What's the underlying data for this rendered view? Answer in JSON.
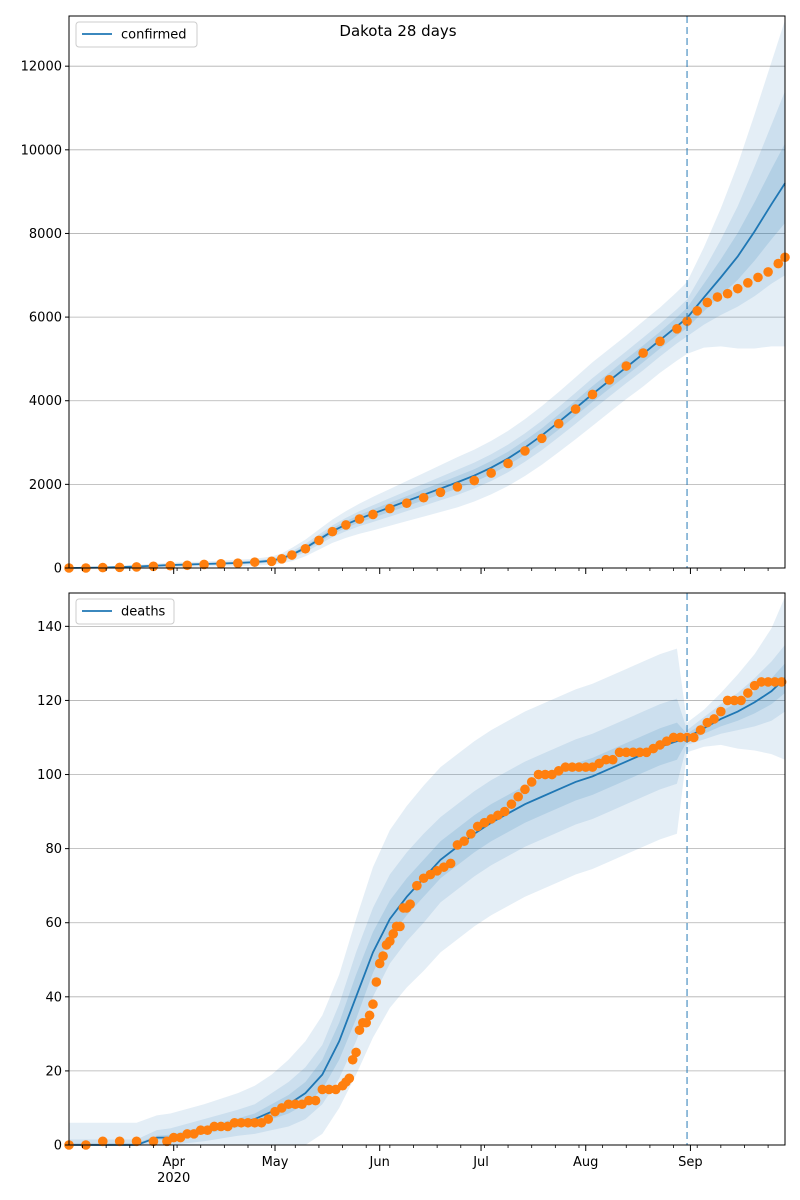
{
  "title": "Dakota 28 days",
  "colors": {
    "model": "#1f77b4",
    "observed": "#ff7f0e",
    "band": "#1f77b4",
    "grid": "#b0b0b0"
  },
  "x_axis": {
    "ticks": [
      {
        "label": "Apr",
        "day": 31,
        "sub": "2020"
      },
      {
        "label": "May",
        "day": 61
      },
      {
        "label": "Jun",
        "day": 92
      },
      {
        "label": "Jul",
        "day": 122
      },
      {
        "label": "Aug",
        "day": 153
      },
      {
        "label": "Sep",
        "day": 184
      }
    ]
  },
  "chart_data": [
    {
      "type": "line",
      "panel": "confirmed",
      "title": "Dakota 28 days",
      "legend": [
        {
          "label": "confirmed",
          "placement": "upper left"
        }
      ],
      "x_range_days_since_2020_03_01": [
        0,
        212
      ],
      "forecast_start_day": 183,
      "ylim": [
        0,
        13200
      ],
      "yticks": [
        "0",
        "2000",
        "4000",
        "6000",
        "8000",
        "10000",
        "12000"
      ],
      "grid": "horizontal",
      "model_series": {
        "name": "confirmed",
        "days": [
          0,
          10,
          20,
          30,
          40,
          50,
          55,
          60,
          63,
          66,
          70,
          74,
          78,
          82,
          86,
          90,
          95,
          100,
          105,
          110,
          115,
          120,
          125,
          130,
          135,
          140,
          145,
          150,
          155,
          160,
          165,
          170,
          175,
          180,
          183,
          188,
          193,
          198,
          203,
          208,
          212
        ],
        "values": [
          0,
          10,
          35,
          70,
          95,
          120,
          140,
          175,
          230,
          320,
          480,
          680,
          880,
          1040,
          1180,
          1300,
          1450,
          1600,
          1750,
          1900,
          2050,
          2210,
          2400,
          2620,
          2880,
          3170,
          3490,
          3820,
          4160,
          4480,
          4800,
          5120,
          5450,
          5780,
          5980,
          6470,
          6950,
          7450,
          8050,
          8700,
          9200
        ],
        "band_widths": {
          "inner": [
            0,
            5,
            10,
            15,
            15,
            20,
            20,
            25,
            30,
            40,
            50,
            60,
            70,
            80,
            90,
            100,
            110,
            120,
            130,
            140,
            150,
            150,
            160,
            160,
            170,
            170,
            180,
            180,
            190,
            190,
            200,
            200,
            200,
            220,
            240,
            330,
            430,
            560,
            700,
            840,
            950
          ],
          "middle": [
            0,
            10,
            20,
            30,
            30,
            40,
            40,
            50,
            60,
            80,
            100,
            120,
            140,
            160,
            180,
            200,
            220,
            240,
            260,
            280,
            300,
            310,
            320,
            330,
            340,
            350,
            360,
            370,
            380,
            380,
            380,
            390,
            390,
            410,
            440,
            650,
            900,
            1200,
            1550,
            1900,
            2200
          ],
          "outer": [
            5,
            20,
            40,
            60,
            60,
            80,
            80,
            100,
            120,
            160,
            200,
            240,
            280,
            320,
            360,
            400,
            440,
            480,
            520,
            560,
            600,
            620,
            640,
            660,
            680,
            700,
            720,
            740,
            760,
            760,
            760,
            780,
            780,
            820,
            860,
            1200,
            1650,
            2200,
            2800,
            3400,
            3900
          ]
        }
      },
      "observed_series": {
        "days": [
          0,
          5,
          10,
          15,
          20,
          25,
          30,
          35,
          40,
          45,
          50,
          55,
          60,
          63,
          66,
          70,
          74,
          78,
          82,
          86,
          90,
          95,
          100,
          105,
          110,
          115,
          120,
          125,
          130,
          135,
          140,
          145,
          150,
          155,
          160,
          165,
          170,
          175,
          180,
          183,
          186,
          189,
          192,
          195,
          198,
          201,
          204,
          207,
          210,
          212
        ],
        "values": [
          0,
          0,
          10,
          15,
          25,
          40,
          55,
          65,
          85,
          100,
          115,
          140,
          160,
          220,
          310,
          460,
          660,
          870,
          1030,
          1170,
          1280,
          1420,
          1550,
          1680,
          1810,
          1940,
          2090,
          2270,
          2500,
          2800,
          3100,
          3450,
          3800,
          4150,
          4500,
          4830,
          5140,
          5420,
          5720,
          5900,
          6150,
          6350,
          6480,
          6560,
          6680,
          6820,
          6950,
          7080,
          7280,
          7430
        ]
      }
    },
    {
      "type": "line",
      "panel": "deaths",
      "legend": [
        {
          "label": "deaths",
          "placement": "upper left"
        }
      ],
      "x_range_days_since_2020_03_01": [
        0,
        212
      ],
      "forecast_start_day": 183,
      "ylim": [
        0,
        149
      ],
      "yticks": [
        "0",
        "20",
        "40",
        "60",
        "80",
        "100",
        "120",
        "140"
      ],
      "grid": "horizontal",
      "model_series": {
        "name": "deaths",
        "days": [
          0,
          10,
          20,
          26,
          30,
          40,
          50,
          55,
          60,
          65,
          70,
          75,
          80,
          85,
          90,
          95,
          100,
          105,
          110,
          115,
          120,
          125,
          130,
          135,
          140,
          145,
          150,
          155,
          160,
          165,
          170,
          175,
          180,
          183,
          188,
          193,
          198,
          203,
          208,
          212
        ],
        "values": [
          0,
          0,
          0,
          2,
          2,
          4,
          6,
          7,
          9,
          11,
          14,
          19,
          28,
          40,
          52,
          61,
          67,
          72,
          77,
          80.5,
          84,
          87,
          89.5,
          92,
          94,
          96,
          98,
          99.5,
          101.5,
          103.5,
          105.5,
          107.5,
          109,
          110,
          112.5,
          115,
          117,
          119.5,
          122.5,
          126
        ],
        "band_widths": {
          "inner": [
            0.5,
            0.5,
            0.5,
            0.5,
            0.8,
            1,
            1.2,
            1.5,
            2,
            2.5,
            3,
            4,
            5,
            6,
            5.5,
            5,
            5,
            5,
            5,
            5,
            5,
            5,
            5,
            5,
            5,
            5,
            5,
            5,
            5,
            5,
            5,
            5,
            5,
            1,
            1.5,
            2,
            2.5,
            3,
            3.5,
            4
          ],
          "middle": [
            1.5,
            1.5,
            1.5,
            2,
            2.5,
            3,
            3.5,
            4,
            5,
            6,
            7,
            8,
            10,
            12,
            12,
            12,
            12,
            12,
            11.5,
            11.5,
            11.5,
            11.5,
            11.5,
            11.5,
            11.5,
            11.5,
            11.5,
            11.5,
            11.5,
            11.5,
            11.5,
            11.5,
            11.5,
            2,
            3,
            4,
            5,
            6.5,
            8,
            9
          ],
          "outer": [
            6,
            6,
            6,
            6,
            6.5,
            7,
            8,
            9,
            10,
            12,
            14,
            16,
            18,
            21,
            23,
            24,
            24.5,
            25,
            25,
            25,
            25,
            25,
            25,
            25,
            25,
            25,
            25,
            25,
            25,
            25,
            25,
            25,
            25,
            4,
            5,
            7,
            10,
            13,
            17,
            22
          ]
        }
      },
      "observed_series": {
        "days": [
          0,
          5,
          10,
          15,
          20,
          25,
          29,
          31,
          33,
          35,
          37,
          39,
          41,
          43,
          45,
          47,
          49,
          51,
          53,
          55,
          57,
          59,
          61,
          63,
          65,
          67,
          69,
          71,
          73,
          75,
          77,
          79,
          81,
          82,
          83,
          84,
          85,
          86,
          87,
          88,
          89,
          90,
          91,
          92,
          93,
          94,
          95,
          96,
          97,
          98,
          99,
          100,
          101,
          103,
          105,
          107,
          109,
          111,
          113,
          115,
          117,
          119,
          121,
          123,
          125,
          127,
          129,
          131,
          133,
          135,
          137,
          139,
          141,
          143,
          145,
          147,
          149,
          151,
          153,
          155,
          157,
          159,
          161,
          163,
          165,
          167,
          169,
          171,
          173,
          175,
          177,
          179,
          181,
          183,
          185,
          187,
          189,
          191,
          193,
          195,
          197,
          199,
          201,
          203,
          205,
          207,
          209,
          211
        ],
        "values": [
          0,
          0,
          1,
          1,
          1,
          1,
          1,
          2,
          2,
          3,
          3,
          4,
          4,
          5,
          5,
          5,
          6,
          6,
          6,
          6,
          6,
          7,
          9,
          10,
          11,
          11,
          11,
          12,
          12,
          15,
          15,
          15,
          16,
          17,
          18,
          23,
          25,
          31,
          33,
          33,
          35,
          38,
          44,
          49,
          51,
          54,
          55,
          57,
          59,
          59,
          64,
          64,
          65,
          70,
          72,
          73,
          74,
          75,
          76,
          81,
          82,
          84,
          86,
          87,
          88,
          89,
          90,
          92,
          94,
          96,
          98,
          100,
          100,
          100,
          101,
          102,
          102,
          102,
          102,
          102,
          103,
          104,
          104,
          106,
          106,
          106,
          106,
          106,
          107,
          108,
          109,
          110,
          110,
          110,
          110,
          112,
          114,
          115,
          117,
          120,
          120,
          120,
          122,
          124,
          125,
          125,
          125,
          125
        ]
      }
    }
  ]
}
